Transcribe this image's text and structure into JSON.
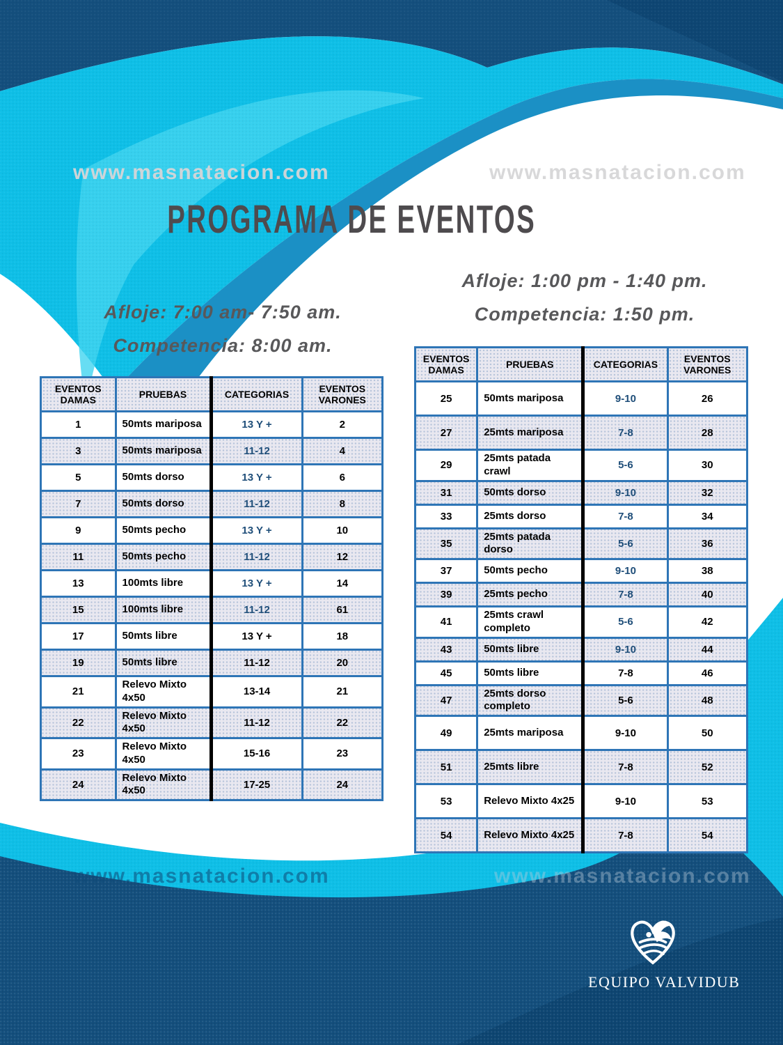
{
  "watermark": {
    "text": "www.masnatacion.com"
  },
  "title": "PROGRAMA DE EVENTOS",
  "sessions": {
    "morning": {
      "afloje": "Afloje:  7:00 am- 7:50 am.",
      "competencia": "Competencia:  8:00 am."
    },
    "afternoon": {
      "afloje": "Afloje: 1:00 pm - 1:40 pm.",
      "competencia": "Competencia:  1:50 pm."
    }
  },
  "tables": {
    "morning": {
      "headers": [
        "EVENTOS\nDAMAS",
        "PRUEBAS",
        "CATEGORIAS",
        "EVENTOS\nVARONES"
      ],
      "rows": [
        {
          "damas": "1",
          "prueba": "50mts mariposa",
          "categoria": "13 Y +",
          "varones": "2",
          "cat_style": "blue"
        },
        {
          "damas": "3",
          "prueba": "50mts mariposa",
          "categoria": "11-12",
          "varones": "4",
          "cat_style": "blue"
        },
        {
          "damas": "5",
          "prueba": "50mts dorso",
          "categoria": "13 Y +",
          "varones": "6",
          "cat_style": "blue"
        },
        {
          "damas": "7",
          "prueba": "50mts dorso",
          "categoria": "11-12",
          "varones": "8",
          "cat_style": "blue"
        },
        {
          "damas": "9",
          "prueba": "50mts pecho",
          "categoria": "13 Y +",
          "varones": "10",
          "cat_style": "blue"
        },
        {
          "damas": "11",
          "prueba": "50mts pecho",
          "categoria": "11-12",
          "varones": "12",
          "cat_style": "blue"
        },
        {
          "damas": "13",
          "prueba": "100mts libre",
          "categoria": "13 Y +",
          "varones": "14",
          "cat_style": "blue"
        },
        {
          "damas": "15",
          "prueba": "100mts libre",
          "categoria": "11-12",
          "varones": "61",
          "cat_style": "blue"
        },
        {
          "damas": "17",
          "prueba": "50mts libre",
          "categoria": "13 Y +",
          "varones": "18",
          "cat_style": "black"
        },
        {
          "damas": "19",
          "prueba": "50mts libre",
          "categoria": "11-12",
          "varones": "20",
          "cat_style": "black"
        },
        {
          "damas": "21",
          "prueba": "Relevo Mixto 4x50",
          "categoria": "13-14",
          "varones": "21",
          "cat_style": "black"
        },
        {
          "damas": "22",
          "prueba": "Relevo Mixto 4x50",
          "categoria": "11-12",
          "varones": "22",
          "cat_style": "black"
        },
        {
          "damas": "23",
          "prueba": "Relevo Mixto 4x50",
          "categoria": "15-16",
          "varones": "23",
          "cat_style": "black"
        },
        {
          "damas": "24",
          "prueba": "Relevo Mixto 4x50",
          "categoria": "17-25",
          "varones": "24",
          "cat_style": "black"
        }
      ]
    },
    "afternoon": {
      "headers": [
        "EVENTOS\nDAMAS",
        "PRUEBAS",
        "CATEGORIAS",
        "EVENTOS\nVARONES"
      ],
      "rows": [
        {
          "damas": "25",
          "prueba": "50mts mariposa",
          "categoria": "9-10",
          "varones": "26",
          "cat_style": "blue",
          "tall": true
        },
        {
          "damas": "27",
          "prueba": "25mts mariposa",
          "categoria": "7-8",
          "varones": "28",
          "cat_style": "blue",
          "tall": true
        },
        {
          "damas": "29",
          "prueba": "25mts patada crawl",
          "categoria": "5-6",
          "varones": "30",
          "cat_style": "blue"
        },
        {
          "damas": "31",
          "prueba": "50mts dorso",
          "categoria": "9-10",
          "varones": "32",
          "cat_style": "blue"
        },
        {
          "damas": "33",
          "prueba": "25mts dorso",
          "categoria": "7-8",
          "varones": "34",
          "cat_style": "blue"
        },
        {
          "damas": "35",
          "prueba": "25mts patada dorso",
          "categoria": "5-6",
          "varones": "36",
          "cat_style": "blue"
        },
        {
          "damas": "37",
          "prueba": "50mts pecho",
          "categoria": "9-10",
          "varones": "38",
          "cat_style": "blue"
        },
        {
          "damas": "39",
          "prueba": "25mts pecho",
          "categoria": "7-8",
          "varones": "40",
          "cat_style": "blue"
        },
        {
          "damas": "41",
          "prueba": "25mts crawl completo",
          "categoria": "5-6",
          "varones": "42",
          "cat_style": "blue"
        },
        {
          "damas": "43",
          "prueba": "50mts libre",
          "categoria": "9-10",
          "varones": "44",
          "cat_style": "blue"
        },
        {
          "damas": "45",
          "prueba": "50mts libre",
          "categoria": "7-8",
          "varones": "46",
          "cat_style": "black"
        },
        {
          "damas": "47",
          "prueba": "25mts dorso completo",
          "categoria": "5-6",
          "varones": "48",
          "cat_style": "black"
        },
        {
          "damas": "49",
          "prueba": "25mts mariposa",
          "categoria": "9-10",
          "varones": "50",
          "cat_style": "black",
          "tall": true
        },
        {
          "damas": "51",
          "prueba": "25mts libre",
          "categoria": "7-8",
          "varones": "52",
          "cat_style": "black",
          "tall": true
        },
        {
          "damas": "53",
          "prueba": "Relevo Mixto 4x25",
          "categoria": "9-10",
          "varones": "53",
          "cat_style": "black",
          "tall": true
        },
        {
          "damas": "54",
          "prueba": "Relevo Mixto 4x25",
          "categoria": "7-8",
          "varones": "54",
          "cat_style": "black",
          "tall": true
        }
      ]
    }
  },
  "logo": {
    "team": "EQUIPO VALVIDUB"
  },
  "colors": {
    "navy": "#144f7d",
    "navy_dark": "#0e4672",
    "cyan": "#0fbfe7",
    "cyan_light": "#41d5f0",
    "blue_rim": "#1b90c5",
    "table_border_blue": "#2e75b6",
    "category_blue": "#1f4e79",
    "stripe_gray": "#e9e8f0",
    "title_gray": "#4e4b4e",
    "schedule_gray": "#58585a"
  }
}
